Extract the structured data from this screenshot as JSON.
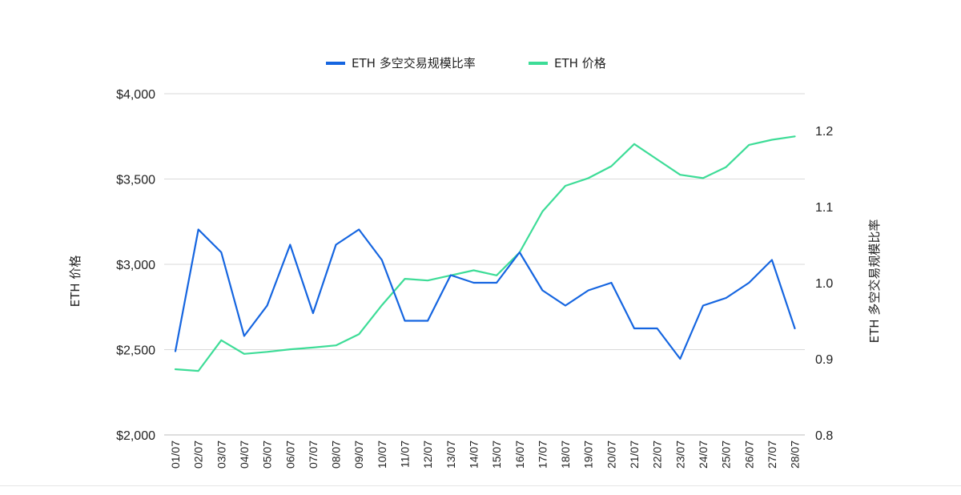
{
  "chart_data": {
    "type": "line",
    "title": "",
    "categories": [
      "01/07",
      "02/07",
      "03/07",
      "04/07",
      "05/07",
      "06/07",
      "07/07",
      "08/07",
      "09/07",
      "10/07",
      "11/07",
      "12/07",
      "13/07",
      "14/07",
      "15/07",
      "16/07",
      "17/07",
      "18/07",
      "19/07",
      "20/07",
      "21/07",
      "22/07",
      "23/07",
      "24/07",
      "25/07",
      "26/07",
      "27/07",
      "28/07"
    ],
    "series": [
      {
        "name": "ETH 多空交易规模比率",
        "axis": "right",
        "color": "#1565e0",
        "values": [
          0.91,
          1.07,
          1.04,
          0.93,
          0.97,
          1.05,
          0.96,
          1.05,
          1.07,
          1.03,
          0.95,
          0.95,
          1.01,
          1.0,
          1.0,
          1.04,
          0.99,
          0.97,
          0.99,
          1.0,
          0.94,
          0.94,
          0.9,
          0.97,
          0.98,
          1.0,
          1.03,
          0.94
        ]
      },
      {
        "name": "ETH  价格",
        "axis": "left",
        "color": "#3ddc97",
        "values": [
          2385,
          2375,
          2555,
          2475,
          2487,
          2502,
          2512,
          2525,
          2590,
          2760,
          2915,
          2905,
          2935,
          2965,
          2935,
          3070,
          3310,
          3460,
          3505,
          3575,
          3705,
          3615,
          3525,
          3505,
          3570,
          3700,
          3730,
          3750
        ]
      }
    ],
    "y_left": {
      "label": "ETH 价格",
      "range": [
        2000,
        4000
      ],
      "ticks": [
        2000,
        2500,
        3000,
        3500,
        4000
      ],
      "tick_labels": [
        "$2,000",
        "$2,500",
        "$3,000",
        "$3,500",
        "$4,000"
      ]
    },
    "y_right": {
      "label": "ETH 多空交易规模比率",
      "range": [
        0.8,
        1.25
      ],
      "ticks": [
        0.8,
        0.9,
        1.0,
        1.1,
        1.2
      ],
      "tick_labels": [
        "0.8",
        "0.9",
        "1.0",
        "1.1",
        "1.2"
      ]
    },
    "grid": true,
    "legend_position": "top-center"
  }
}
